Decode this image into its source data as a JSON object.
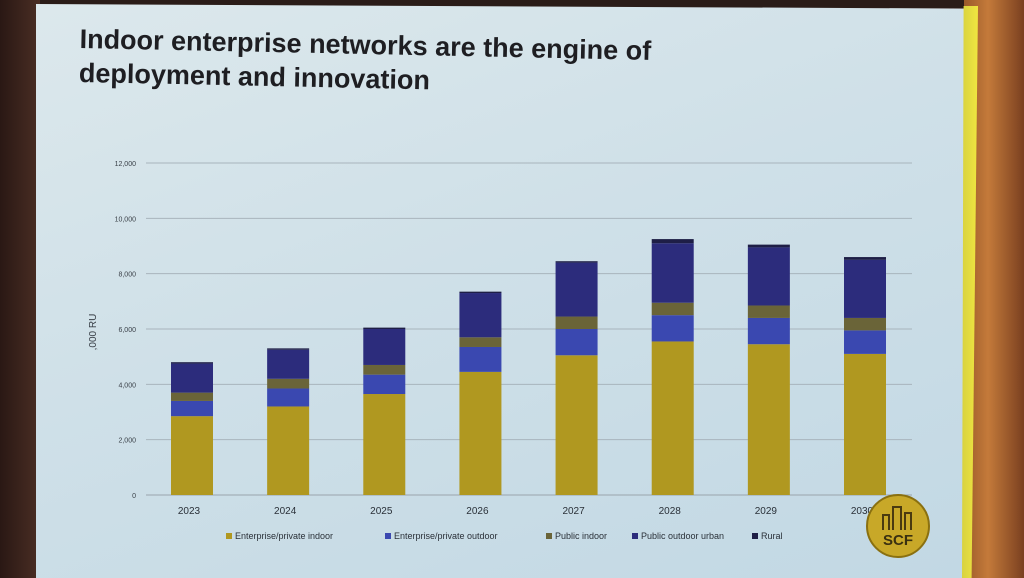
{
  "slide": {
    "title_line1": "Indoor enterprise networks are the engine of",
    "title_line2": "deployment and innovation",
    "logo_text": "SCF"
  },
  "colors": {
    "enterprise_private_indoor": "#b09820",
    "enterprise_private_outdoor": "#3a48b0",
    "public_indoor": "#6a6438",
    "public_outdoor_urban": "#2c2c7c",
    "rural": "#1e1e46"
  },
  "chart_data": {
    "type": "bar",
    "stacked": true,
    "title": "",
    "xlabel": "",
    "ylabel": ",000 RU",
    "ylim": [
      0,
      12000
    ],
    "yticks": [
      0,
      2000,
      4000,
      6000,
      8000,
      10000,
      12000
    ],
    "ytick_labels": [
      "0",
      "2,000",
      "4,000",
      "6,000",
      "8,000",
      "10,000",
      "12,000"
    ],
    "categories": [
      "2023",
      "2024",
      "2025",
      "2026",
      "2027",
      "2028",
      "2029",
      "2030"
    ],
    "legend_position": "bottom",
    "grid": true,
    "series": [
      {
        "name": "Enterprise/private indoor",
        "values": [
          2850,
          3200,
          3650,
          4450,
          5050,
          5550,
          5450,
          5100
        ]
      },
      {
        "name": "Enterprise/private outdoor",
        "values": [
          550,
          650,
          700,
          900,
          950,
          950,
          950,
          850
        ]
      },
      {
        "name": "Public indoor",
        "values": [
          300,
          350,
          350,
          350,
          450,
          450,
          450,
          450
        ]
      },
      {
        "name": "Public outdoor urban",
        "values": [
          1050,
          1050,
          1300,
          1600,
          1950,
          2150,
          2100,
          2100
        ]
      },
      {
        "name": "Rural",
        "values": [
          50,
          50,
          50,
          50,
          50,
          150,
          100,
          100
        ]
      }
    ]
  }
}
